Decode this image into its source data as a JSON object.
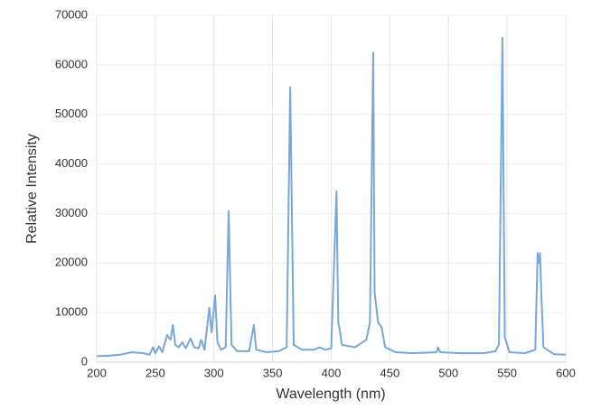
{
  "chart_data": {
    "type": "line",
    "x_label": "Wavelength (nm)",
    "y_label": "Relative Intensity",
    "x": [
      200,
      210,
      220,
      230,
      240,
      245,
      248,
      250,
      253,
      256,
      260,
      263,
      265,
      267,
      270,
      273,
      276,
      280,
      283,
      287,
      289,
      292,
      296,
      298,
      301,
      303,
      306,
      310,
      312.5,
      315,
      320,
      330,
      334,
      336,
      345,
      355,
      362,
      365,
      368,
      375,
      385,
      390,
      395,
      400,
      404.5,
      406,
      407,
      409,
      420,
      430,
      433,
      435.8,
      437,
      440,
      443,
      446,
      455,
      470,
      490,
      491,
      493,
      510,
      530,
      540,
      543,
      546,
      548,
      552,
      565,
      574,
      576,
      577,
      578,
      579,
      581,
      590,
      600
    ],
    "values": [
      1200,
      1300,
      1500,
      2000,
      1800,
      1500,
      3000,
      1800,
      3200,
      2000,
      5500,
      4500,
      7500,
      3500,
      3000,
      4000,
      2800,
      4800,
      3000,
      2800,
      4500,
      2500,
      11000,
      6000,
      13500,
      4000,
      2500,
      3000,
      30500,
      3500,
      2200,
      2200,
      7500,
      2500,
      2000,
      2200,
      3000,
      55500,
      3500,
      2500,
      2500,
      3000,
      2500,
      2800,
      34500,
      8000,
      7000,
      3500,
      3000,
      4500,
      8000,
      62500,
      14000,
      8000,
      7000,
      3000,
      2000,
      1800,
      2000,
      3000,
      2000,
      1800,
      1800,
      2200,
      3500,
      65500,
      5000,
      2000,
      1800,
      2500,
      22000,
      20000,
      22000,
      15000,
      3000,
      1600,
      1500
    ],
    "color": "#7aa6d8",
    "xlim": [
      200,
      600
    ],
    "xticks": [
      200,
      250,
      300,
      350,
      400,
      450,
      500,
      550,
      600
    ],
    "ylim": [
      0,
      70000
    ],
    "yticks": [
      0,
      10000,
      20000,
      30000,
      40000,
      50000,
      60000,
      70000
    ],
    "grid": true
  }
}
